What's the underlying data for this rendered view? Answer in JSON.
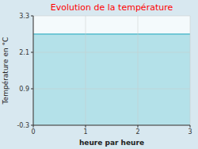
{
  "chart_data": {
    "type": "area",
    "title": "Evolution de la température",
    "xlabel": "heure par heure",
    "ylabel": "Température en °C",
    "x": [
      0,
      3
    ],
    "values": [
      2.7,
      2.7
    ],
    "color": "#55bbcc",
    "xlim": [
      0,
      3
    ],
    "ylim": [
      -0.3,
      3.3
    ],
    "xticks": [
      0,
      1,
      2,
      3
    ],
    "yticks": [
      -0.3,
      0.9,
      2.1,
      3.3
    ],
    "grid": true
  }
}
